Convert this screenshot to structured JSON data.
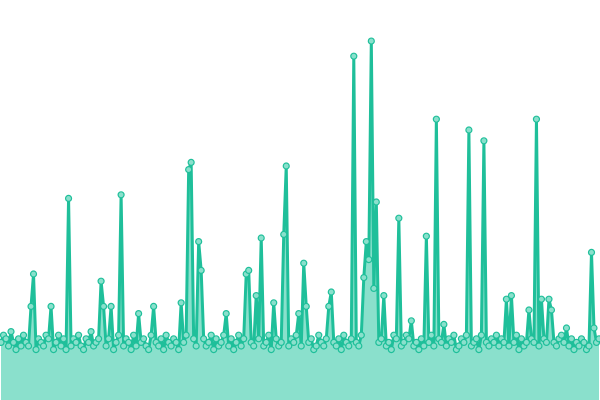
{
  "chart_data": {
    "type": "area",
    "title": "",
    "xlabel": "",
    "ylabel": "",
    "axes_visible": false,
    "grid": false,
    "legend": "none",
    "xlim": [
      0,
      239
    ],
    "ylim": [
      0,
      100
    ],
    "colors": {
      "fill": "#8ae0cc",
      "line": "#1fbf9a",
      "marker_fill": "#8ae0cc",
      "marker_stroke": "#1fbf9a"
    },
    "series": [
      {
        "values": [
          16,
          18,
          17,
          15,
          19,
          16,
          14,
          17,
          15,
          18,
          16,
          15,
          26,
          35,
          14,
          17,
          16,
          15,
          18,
          17,
          26,
          14,
          16,
          18,
          15,
          17,
          14,
          56,
          15,
          17,
          16,
          18,
          15,
          14,
          17,
          16,
          19,
          15,
          16,
          17,
          33,
          26,
          15,
          17,
          26,
          14,
          16,
          18,
          57,
          15,
          17,
          16,
          14,
          18,
          15,
          24,
          16,
          17,
          15,
          14,
          18,
          26,
          16,
          15,
          17,
          14,
          18,
          16,
          15,
          17,
          16,
          14,
          27,
          16,
          18,
          64,
          66,
          17,
          15,
          44,
          36,
          17,
          15,
          16,
          18,
          14,
          17,
          15,
          16,
          18,
          24,
          15,
          17,
          14,
          16,
          18,
          15,
          17,
          35,
          36,
          16,
          15,
          29,
          17,
          45,
          15,
          16,
          18,
          14,
          27,
          17,
          15,
          16,
          46,
          65,
          15,
          17,
          16,
          18,
          24,
          15,
          38,
          26,
          16,
          17,
          14,
          15,
          18,
          16,
          15,
          17,
          26,
          30,
          16,
          15,
          17,
          14,
          18,
          16,
          15,
          17,
          95.5,
          16,
          15,
          18,
          34,
          44,
          39,
          99.7,
          31,
          55,
          16,
          17,
          29,
          15,
          16,
          14,
          18,
          17,
          50.5,
          15,
          16,
          18,
          17,
          22,
          15,
          16,
          14,
          17,
          15,
          45.5,
          16,
          18,
          15,
          78,
          17,
          16,
          21,
          15,
          17,
          16,
          18,
          14,
          15,
          17,
          16,
          18,
          75,
          15,
          16,
          17,
          14,
          18,
          72,
          16,
          15,
          17,
          16,
          18,
          15,
          17,
          16,
          28,
          15,
          29,
          16,
          18,
          14,
          17,
          15,
          16,
          25,
          17,
          16,
          78,
          15,
          28,
          17,
          16,
          28,
          25,
          16,
          15,
          17,
          18,
          16,
          20,
          15,
          17,
          14,
          16,
          15,
          17,
          16,
          14,
          15,
          41,
          20,
          16,
          17
        ]
      }
    ]
  }
}
